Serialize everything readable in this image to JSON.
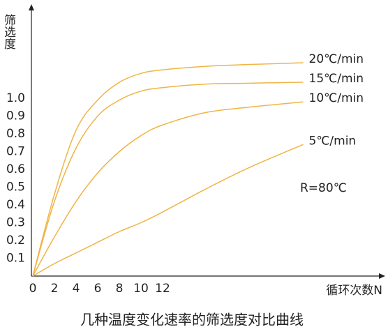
{
  "chart_data": {
    "type": "line",
    "title": "几种温度变化速率的筛选度对比曲线",
    "ylabel": "筛选度",
    "xlabel": "循环次数N",
    "annotation": "R=80℃",
    "x": [
      0,
      2,
      4,
      6,
      8,
      10,
      12,
      16,
      20,
      25
    ],
    "series": [
      {
        "name": "20℃/min",
        "color": "#f0b445",
        "values": [
          0,
          0.46,
          0.82,
          0.99,
          1.09,
          1.14,
          1.16,
          1.18,
          1.19,
          1.2
        ]
      },
      {
        "name": "15℃/min",
        "color": "#f0b445",
        "values": [
          0,
          0.42,
          0.72,
          0.9,
          0.99,
          1.04,
          1.06,
          1.08,
          1.085,
          1.09
        ]
      },
      {
        "name": "10℃/min",
        "color": "#f0b445",
        "values": [
          0,
          0.22,
          0.42,
          0.58,
          0.7,
          0.79,
          0.85,
          0.92,
          0.95,
          0.98
        ]
      },
      {
        "name": "5℃/min",
        "color": "#f0b445",
        "values": [
          0,
          0.07,
          0.13,
          0.19,
          0.25,
          0.3,
          0.36,
          0.49,
          0.61,
          0.74
        ]
      }
    ],
    "xlim": [
      0,
      32
    ],
    "ylim": [
      0,
      1.5
    ],
    "xticks": [
      0,
      2,
      4,
      6,
      8,
      10,
      12
    ],
    "yticks": [
      0.1,
      0.2,
      0.3,
      0.4,
      0.5,
      0.6,
      0.7,
      0.8,
      0.9,
      {
        "value": 1,
        "label": "1.0"
      }
    ],
    "grid": false
  }
}
